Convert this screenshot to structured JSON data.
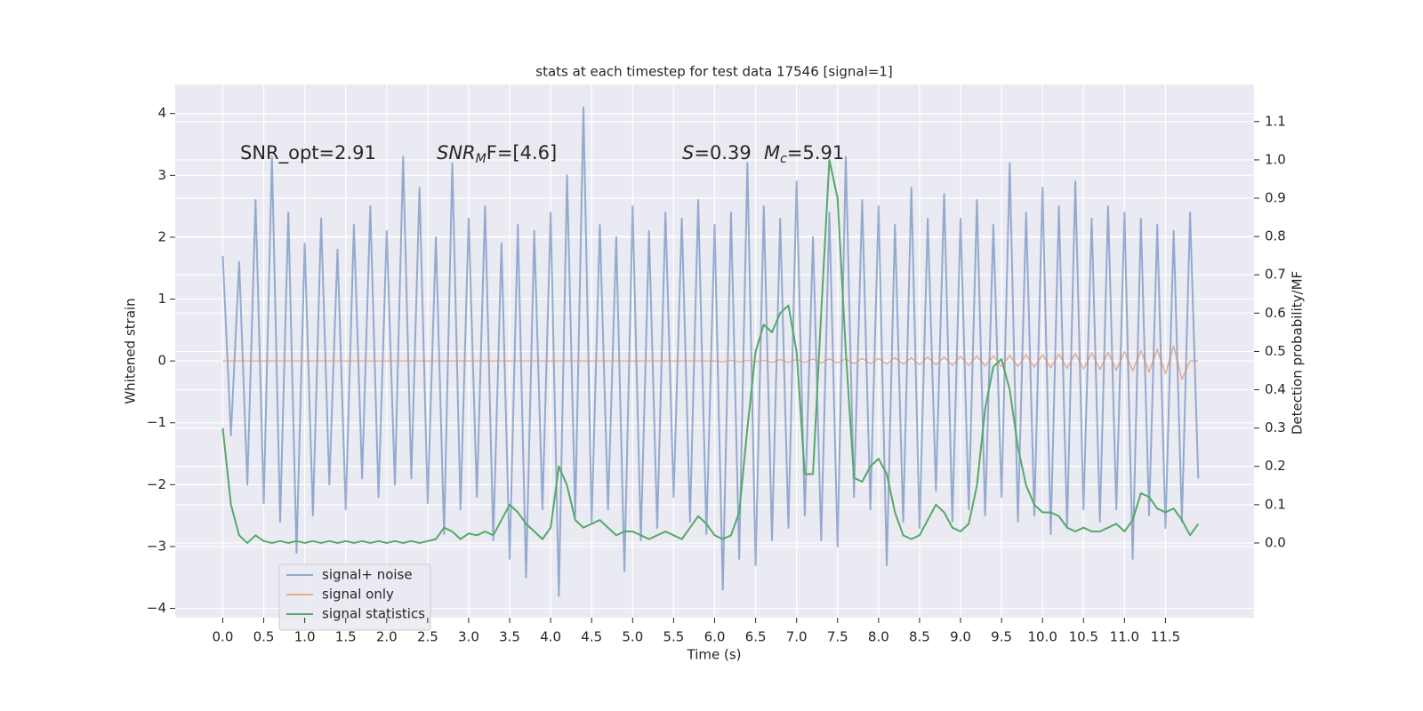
{
  "chart_data": {
    "type": "line",
    "title": "stats at each timestep for test data 17546 [signal=1]",
    "xlabel": "Time (s)",
    "ylabel": "Whitened strain",
    "y2label": "Detection probability/MF",
    "annotations": [
      {
        "text": "SNR_opt=2.91"
      },
      {
        "symbol": "SNR",
        "sub": "M",
        "text": "F=[4.6]"
      },
      {
        "symbol": "S",
        "text": "=0.39"
      },
      {
        "symbol": "M",
        "sub": "c",
        "text": "=5.91"
      }
    ],
    "x": [
      0.0,
      0.1,
      0.2,
      0.3,
      0.4,
      0.5,
      0.6,
      0.7,
      0.8,
      0.9,
      1.0,
      1.1,
      1.2,
      1.3,
      1.4,
      1.5,
      1.6,
      1.7,
      1.8,
      1.9,
      2.0,
      2.1,
      2.2,
      2.3,
      2.4,
      2.5,
      2.6,
      2.7,
      2.8,
      2.9,
      3.0,
      3.1,
      3.2,
      3.3,
      3.4,
      3.5,
      3.6,
      3.7,
      3.8,
      3.9,
      4.0,
      4.1,
      4.2,
      4.3,
      4.4,
      4.5,
      4.6,
      4.7,
      4.8,
      4.9,
      5.0,
      5.1,
      5.2,
      5.3,
      5.4,
      5.5,
      5.6,
      5.7,
      5.8,
      5.9,
      6.0,
      6.1,
      6.2,
      6.3,
      6.4,
      6.5,
      6.6,
      6.7,
      6.8,
      6.9,
      7.0,
      7.1,
      7.2,
      7.3,
      7.4,
      7.5,
      7.6,
      7.7,
      7.8,
      7.9,
      8.0,
      8.1,
      8.2,
      8.3,
      8.4,
      8.5,
      8.6,
      8.7,
      8.8,
      8.9,
      9.0,
      9.1,
      9.2,
      9.3,
      9.4,
      9.5,
      9.6,
      9.7,
      9.8,
      9.9,
      10.0,
      10.1,
      10.2,
      10.3,
      10.4,
      10.5,
      10.6,
      10.7,
      10.8,
      10.9,
      11.0,
      11.1,
      11.2,
      11.3,
      11.4,
      11.5,
      11.6,
      11.7,
      11.8,
      11.9
    ],
    "series": [
      {
        "name": "signal+ noise",
        "color": "#4c72b0",
        "values": [
          1.7,
          -1.2,
          1.6,
          -2.0,
          2.6,
          -2.3,
          3.3,
          -2.6,
          2.4,
          -3.1,
          1.9,
          -2.5,
          2.3,
          -2.0,
          1.8,
          -2.4,
          2.2,
          -1.9,
          2.5,
          -2.2,
          2.1,
          -2.0,
          3.3,
          -1.9,
          2.8,
          -2.3,
          2.0,
          -2.8,
          3.2,
          -2.4,
          2.3,
          -2.2,
          2.5,
          -2.9,
          1.9,
          -3.2,
          2.2,
          -3.5,
          2.1,
          -2.4,
          2.4,
          -3.8,
          3.0,
          -2.5,
          4.1,
          -2.6,
          2.2,
          -2.4,
          2.0,
          -3.4,
          2.5,
          -2.9,
          2.1,
          -2.7,
          2.4,
          -2.2,
          2.3,
          -2.6,
          2.6,
          -2.8,
          2.2,
          -3.7,
          2.4,
          -3.2,
          3.2,
          -3.3,
          2.5,
          -2.9,
          2.3,
          -2.7,
          2.9,
          -2.5,
          2.0,
          -2.9,
          2.4,
          -3.0,
          3.3,
          -2.2,
          2.6,
          -2.4,
          2.5,
          -3.3,
          2.2,
          -2.6,
          2.8,
          -2.7,
          2.3,
          -2.1,
          2.7,
          -2.6,
          2.3,
          -2.4,
          2.6,
          -2.5,
          2.2,
          -2.2,
          3.2,
          -2.6,
          2.4,
          -2.5,
          2.8,
          -2.8,
          2.5,
          -2.7,
          2.9,
          -2.4,
          2.3,
          -2.6,
          2.5,
          -2.4,
          2.4,
          -3.2,
          2.3,
          -2.5,
          2.2,
          -2.7,
          2.1,
          -2.6,
          2.4,
          -1.9
        ]
      },
      {
        "name": "signal only",
        "color": "#dd8452",
        "values": [
          0,
          0,
          0,
          0,
          0,
          0,
          0,
          0,
          0,
          0,
          0,
          0,
          0,
          0,
          0,
          0,
          0,
          0,
          0,
          0,
          0,
          0,
          0,
          0,
          0,
          0,
          0,
          0,
          0,
          0,
          0,
          0,
          0,
          0,
          0,
          0,
          0,
          0,
          0,
          0,
          0,
          0,
          0,
          0,
          0,
          0,
          0,
          0,
          0,
          0,
          0,
          0,
          0,
          0,
          0,
          0,
          0,
          0,
          0,
          0,
          0.0,
          -0.01,
          0.01,
          -0.01,
          0.01,
          -0.01,
          0.01,
          -0.02,
          0.02,
          -0.02,
          0.02,
          -0.02,
          0.03,
          -0.03,
          0.03,
          -0.03,
          0.03,
          -0.04,
          0.04,
          -0.04,
          0.04,
          -0.05,
          0.05,
          -0.05,
          0.05,
          -0.06,
          0.06,
          -0.06,
          0.06,
          -0.07,
          0.07,
          -0.07,
          0.08,
          -0.08,
          0.08,
          -0.09,
          0.09,
          -0.09,
          0.1,
          -0.1,
          0.1,
          -0.11,
          0.11,
          -0.12,
          0.12,
          -0.13,
          0.13,
          -0.14,
          0.14,
          -0.15,
          0.15,
          -0.16,
          0.17,
          -0.18,
          0.19,
          -0.21,
          0.24,
          -0.3,
          0.0,
          0.0
        ]
      },
      {
        "name": "signal statistics",
        "color": "#55a868",
        "axis": "y2",
        "values": [
          0.3,
          0.1,
          0.02,
          0.0,
          0.02,
          0.005,
          0.0,
          0.005,
          0.0,
          0.005,
          0.0,
          0.005,
          0.0,
          0.005,
          0.0,
          0.005,
          0.0,
          0.005,
          0.0,
          0.005,
          0.0,
          0.005,
          0.0,
          0.005,
          0.0,
          0.005,
          0.01,
          0.04,
          0.03,
          0.01,
          0.025,
          0.02,
          0.03,
          0.02,
          0.06,
          0.1,
          0.08,
          0.05,
          0.03,
          0.01,
          0.04,
          0.2,
          0.15,
          0.06,
          0.04,
          0.05,
          0.06,
          0.04,
          0.02,
          0.03,
          0.03,
          0.02,
          0.01,
          0.02,
          0.03,
          0.02,
          0.01,
          0.04,
          0.07,
          0.05,
          0.02,
          0.01,
          0.02,
          0.08,
          0.3,
          0.5,
          0.57,
          0.55,
          0.6,
          0.62,
          0.5,
          0.18,
          0.18,
          0.6,
          1.0,
          0.9,
          0.5,
          0.17,
          0.16,
          0.2,
          0.22,
          0.18,
          0.08,
          0.02,
          0.01,
          0.02,
          0.06,
          0.1,
          0.08,
          0.04,
          0.03,
          0.05,
          0.15,
          0.35,
          0.46,
          0.48,
          0.4,
          0.25,
          0.15,
          0.1,
          0.08,
          0.08,
          0.07,
          0.04,
          0.03,
          0.04,
          0.03,
          0.03,
          0.04,
          0.05,
          0.03,
          0.06,
          0.13,
          0.12,
          0.09,
          0.08,
          0.09,
          0.06,
          0.02,
          0.05
        ]
      }
    ],
    "xlim": [
      -0.58,
      12.58
    ],
    "xticks": [
      {
        "value": 0,
        "label": "0.0"
      },
      0.5,
      {
        "value": 1,
        "label": "1.0"
      },
      1.5,
      {
        "value": 2,
        "label": "2.0"
      },
      2.5,
      {
        "value": 3,
        "label": "3.0"
      },
      3.5,
      {
        "value": 4,
        "label": "4.0"
      },
      4.5,
      {
        "value": 5,
        "label": "5.0"
      },
      5.5,
      {
        "value": 6,
        "label": "6.0"
      },
      6.5,
      {
        "value": 7,
        "label": "7.0"
      },
      7.5,
      {
        "value": 8,
        "label": "8.0"
      },
      8.5,
      {
        "value": 9,
        "label": "9.0"
      },
      9.5,
      {
        "value": 10,
        "label": "10.0"
      },
      10.5,
      {
        "value": 11,
        "label": "11.0"
      },
      11.5
    ],
    "ylim": [
      -4.15,
      4.47
    ],
    "yticks": [
      {
        "value": -4,
        "label": "−4"
      },
      {
        "value": -3,
        "label": "−3"
      },
      {
        "value": -2,
        "label": "−2"
      },
      {
        "value": -1,
        "label": "−1"
      },
      0,
      1,
      2,
      3,
      4
    ],
    "y2lim": [
      -0.195,
      1.197
    ],
    "y2ticks": [
      {
        "value": 0,
        "label": "0.0"
      },
      0.1,
      0.2,
      0.3,
      0.4,
      0.5,
      0.6,
      0.7,
      0.8,
      0.9,
      {
        "value": 1,
        "label": "1.0"
      },
      1.1
    ],
    "grid": true,
    "legend": "lower left"
  }
}
